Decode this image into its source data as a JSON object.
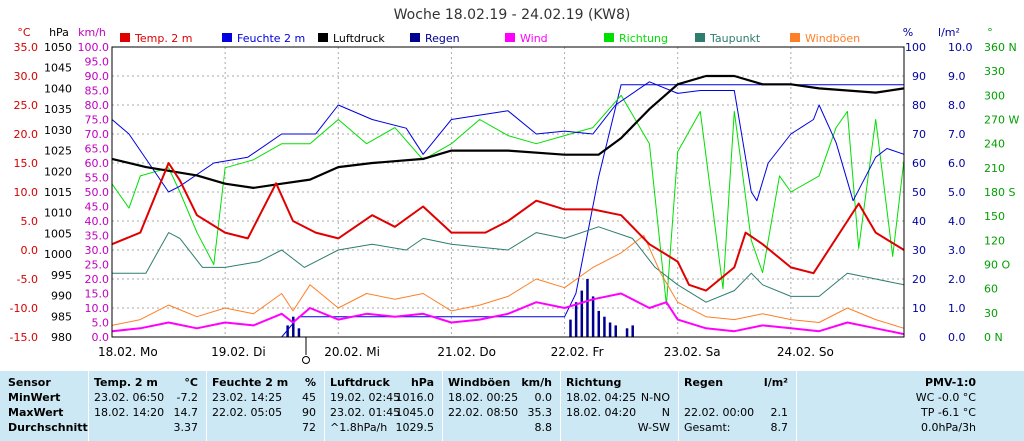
{
  "title": "Woche 18.02.19 - 24.02.19 (KW8)",
  "axes": {
    "temp": {
      "unit": "°C",
      "ticks": [
        "35.0",
        "30.0",
        "25.0",
        "20.0",
        "15.0",
        "10.0",
        "5.0",
        "0.0",
        "-5.0",
        "-10.0",
        "-15.0"
      ],
      "color": "#d40000"
    },
    "pressure": {
      "unit": "hPa",
      "ticks": [
        "1050",
        "1045",
        "1040",
        "1035",
        "1030",
        "1025",
        "1020",
        "1015",
        "1010",
        "1005",
        "1000",
        "995",
        "990",
        "985",
        "980"
      ],
      "color": "#000000"
    },
    "wind": {
      "unit": "km/h",
      "ticks": [
        "100.0",
        "95.0",
        "90.0",
        "85.0",
        "80.0",
        "75.0",
        "70.0",
        "65.0",
        "60.0",
        "55.0",
        "50.0",
        "45.0",
        "40.0",
        "35.0",
        "30.0",
        "25.0",
        "20.0",
        "15.0",
        "10.0",
        "5.0",
        "0.0"
      ],
      "color": "#c000c0"
    },
    "humidity": {
      "unit": "%",
      "ticks": [
        "100",
        "90",
        "80",
        "70",
        "60",
        "50",
        "40",
        "30",
        "20",
        "10",
        "0"
      ],
      "color": "#0000a0"
    },
    "rain": {
      "unit": "l/m²",
      "ticks": [
        "10.0",
        "9.0",
        "8.0",
        "7.0",
        "6.0",
        "5.0",
        "4.0",
        "3.0",
        "2.0",
        "1.0",
        "0.0"
      ],
      "color": "#0000a0"
    },
    "direction": {
      "unit": "°",
      "ticks": [
        "360 N",
        "330",
        "300",
        "270 W",
        "240",
        "210",
        "180 S",
        "150",
        "120",
        "90 O",
        "60",
        "30",
        "0 N"
      ],
      "color": "#00a000"
    }
  },
  "days": [
    "18.02.  Mo",
    "19.02.  Di",
    "20.02.  Mi",
    "21.02.  Do",
    "22.02.  Fr",
    "23.02.  Sa",
    "24.02.  So"
  ],
  "legend": [
    {
      "label": "Temp. 2 m",
      "color": "#e00000"
    },
    {
      "label": "Feuchte  2 m",
      "color": "#0000e0"
    },
    {
      "label": "Luftdruck",
      "color": "#000000"
    },
    {
      "label": "Regen",
      "color": "#000090"
    },
    {
      "label": "Wind",
      "color": "#ff00ff"
    },
    {
      "label": "Richtung",
      "color": "#00e000"
    },
    {
      "label": "Taupunkt",
      "color": "#2e7d6e"
    },
    {
      "label": "Windböen",
      "color": "#ff7f27"
    }
  ],
  "chart_data": {
    "type": "line",
    "title": "Woche 18.02.19 - 24.02.19 (KW8)",
    "x_range_days": [
      0,
      7
    ],
    "series": [
      {
        "name": "Temp. 2 m",
        "unit": "°C",
        "axis": "temp",
        "color": "#e00000",
        "points": [
          [
            0,
            1
          ],
          [
            0.25,
            3
          ],
          [
            0.5,
            15
          ],
          [
            0.6,
            12
          ],
          [
            0.75,
            6
          ],
          [
            1,
            3
          ],
          [
            1.2,
            2
          ],
          [
            1.45,
            11.5
          ],
          [
            1.6,
            5
          ],
          [
            1.8,
            3
          ],
          [
            2,
            2
          ],
          [
            2.3,
            6
          ],
          [
            2.5,
            4
          ],
          [
            2.75,
            7.5
          ],
          [
            3,
            3
          ],
          [
            3.3,
            3
          ],
          [
            3.5,
            5
          ],
          [
            3.75,
            8.5
          ],
          [
            4,
            7
          ],
          [
            4.25,
            7
          ],
          [
            4.5,
            6
          ],
          [
            4.75,
            1
          ],
          [
            5,
            -2
          ],
          [
            5.1,
            -6
          ],
          [
            5.25,
            -7
          ],
          [
            5.5,
            -3
          ],
          [
            5.6,
            3
          ],
          [
            5.75,
            1
          ],
          [
            6,
            -3
          ],
          [
            6.2,
            -4
          ],
          [
            6.5,
            5
          ],
          [
            6.6,
            8
          ],
          [
            6.75,
            3
          ],
          [
            7,
            0
          ]
        ]
      },
      {
        "name": "Feuchte  2 m",
        "unit": "%",
        "axis": "humidity",
        "color": "#0000e0",
        "points": [
          [
            0,
            75
          ],
          [
            0.15,
            70
          ],
          [
            0.5,
            50
          ],
          [
            0.6,
            52
          ],
          [
            0.9,
            60
          ],
          [
            1.2,
            62
          ],
          [
            1.5,
            70
          ],
          [
            1.8,
            70
          ],
          [
            2,
            80
          ],
          [
            2.3,
            75
          ],
          [
            2.6,
            72
          ],
          [
            2.75,
            63
          ],
          [
            3,
            75
          ],
          [
            3.5,
            78
          ],
          [
            3.75,
            70
          ],
          [
            4,
            71
          ],
          [
            4.25,
            70
          ],
          [
            4.45,
            80
          ],
          [
            4.75,
            88
          ],
          [
            5,
            84
          ],
          [
            5.2,
            85
          ],
          [
            5.5,
            85
          ],
          [
            5.65,
            50
          ],
          [
            5.7,
            47
          ],
          [
            5.8,
            60
          ],
          [
            6,
            70
          ],
          [
            6.2,
            75
          ],
          [
            6.25,
            80
          ],
          [
            6.4,
            67
          ],
          [
            6.55,
            47
          ],
          [
            6.75,
            62
          ],
          [
            6.85,
            65
          ],
          [
            7,
            63
          ]
        ]
      },
      {
        "name": "Luftdruck",
        "unit": "hPa",
        "axis": "pressure",
        "color": "#000000",
        "points": [
          [
            0,
            1023
          ],
          [
            0.3,
            1021
          ],
          [
            0.75,
            1019
          ],
          [
            1,
            1017
          ],
          [
            1.25,
            1016
          ],
          [
            1.5,
            1017
          ],
          [
            1.75,
            1018
          ],
          [
            2,
            1021
          ],
          [
            2.3,
            1022
          ],
          [
            2.75,
            1023
          ],
          [
            3,
            1025
          ],
          [
            3.5,
            1025
          ],
          [
            4,
            1024
          ],
          [
            4.3,
            1024
          ],
          [
            4.5,
            1028
          ],
          [
            4.75,
            1035
          ],
          [
            5,
            1041
          ],
          [
            5.25,
            1043
          ],
          [
            5.5,
            1043
          ],
          [
            5.75,
            1041
          ],
          [
            6,
            1041
          ],
          [
            6.25,
            1040
          ],
          [
            6.75,
            1039
          ],
          [
            7,
            1040
          ]
        ]
      },
      {
        "name": "Taupunkt",
        "unit": "°C",
        "axis": "temp",
        "color": "#2e7d6e",
        "points": [
          [
            0,
            -4
          ],
          [
            0.3,
            -4
          ],
          [
            0.5,
            3
          ],
          [
            0.6,
            2
          ],
          [
            0.8,
            -3
          ],
          [
            1,
            -3
          ],
          [
            1.3,
            -2
          ],
          [
            1.5,
            0
          ],
          [
            1.7,
            -3
          ],
          [
            2,
            0
          ],
          [
            2.3,
            1
          ],
          [
            2.6,
            0
          ],
          [
            2.75,
            2
          ],
          [
            3,
            1
          ],
          [
            3.5,
            0
          ],
          [
            3.75,
            3
          ],
          [
            4,
            2
          ],
          [
            4.3,
            4
          ],
          [
            4.6,
            2
          ],
          [
            4.8,
            -3
          ],
          [
            5,
            -6
          ],
          [
            5.25,
            -9
          ],
          [
            5.5,
            -7
          ],
          [
            5.65,
            -4
          ],
          [
            5.75,
            -6
          ],
          [
            6,
            -8
          ],
          [
            6.25,
            -8
          ],
          [
            6.5,
            -4
          ],
          [
            6.75,
            -5
          ],
          [
            7,
            -6
          ]
        ]
      },
      {
        "name": "Wind",
        "unit": "km/h",
        "axis": "wind",
        "color": "#ff00ff",
        "points": [
          [
            0,
            2
          ],
          [
            0.25,
            3
          ],
          [
            0.5,
            5
          ],
          [
            0.75,
            3
          ],
          [
            1,
            5
          ],
          [
            1.25,
            4
          ],
          [
            1.5,
            8
          ],
          [
            1.6,
            5
          ],
          [
            1.75,
            10
          ],
          [
            2,
            6
          ],
          [
            2.25,
            8
          ],
          [
            2.5,
            7
          ],
          [
            2.75,
            8
          ],
          [
            3,
            5
          ],
          [
            3.25,
            6
          ],
          [
            3.5,
            8
          ],
          [
            3.75,
            12
          ],
          [
            4,
            10
          ],
          [
            4.25,
            13
          ],
          [
            4.5,
            15
          ],
          [
            4.75,
            10
          ],
          [
            4.9,
            12
          ],
          [
            5,
            6
          ],
          [
            5.25,
            3
          ],
          [
            5.5,
            2
          ],
          [
            5.75,
            4
          ],
          [
            6,
            3
          ],
          [
            6.25,
            2
          ],
          [
            6.5,
            5
          ],
          [
            6.75,
            3
          ],
          [
            7,
            1
          ]
        ]
      },
      {
        "name": "Windböen",
        "unit": "km/h",
        "axis": "wind",
        "color": "#ff7f27",
        "points": [
          [
            0,
            4
          ],
          [
            0.25,
            6
          ],
          [
            0.5,
            11
          ],
          [
            0.75,
            7
          ],
          [
            1,
            10
          ],
          [
            1.25,
            8
          ],
          [
            1.5,
            15
          ],
          [
            1.6,
            9
          ],
          [
            1.75,
            18
          ],
          [
            2,
            10
          ],
          [
            2.25,
            15
          ],
          [
            2.5,
            13
          ],
          [
            2.75,
            15
          ],
          [
            3,
            9
          ],
          [
            3.25,
            11
          ],
          [
            3.5,
            14
          ],
          [
            3.75,
            20
          ],
          [
            4,
            17
          ],
          [
            4.25,
            24
          ],
          [
            4.5,
            29
          ],
          [
            4.7,
            35
          ],
          [
            4.85,
            22
          ],
          [
            5,
            12
          ],
          [
            5.25,
            7
          ],
          [
            5.5,
            6
          ],
          [
            5.75,
            8
          ],
          [
            6,
            6
          ],
          [
            6.25,
            5
          ],
          [
            6.5,
            10
          ],
          [
            6.75,
            6
          ],
          [
            7,
            3
          ]
        ]
      },
      {
        "name": "Richtung",
        "unit": "°",
        "axis": "direction",
        "color": "#00e000",
        "points": [
          [
            0,
            190
          ],
          [
            0.15,
            160
          ],
          [
            0.25,
            200
          ],
          [
            0.5,
            210
          ],
          [
            0.6,
            180
          ],
          [
            0.75,
            130
          ],
          [
            0.9,
            90
          ],
          [
            1,
            210
          ],
          [
            1.25,
            220
          ],
          [
            1.5,
            240
          ],
          [
            1.75,
            240
          ],
          [
            2,
            270
          ],
          [
            2.25,
            240
          ],
          [
            2.5,
            260
          ],
          [
            2.75,
            220
          ],
          [
            3,
            240
          ],
          [
            3.25,
            270
          ],
          [
            3.5,
            250
          ],
          [
            3.75,
            240
          ],
          [
            4,
            250
          ],
          [
            4.25,
            260
          ],
          [
            4.5,
            300
          ],
          [
            4.75,
            240
          ],
          [
            4.9,
            40
          ],
          [
            5,
            230
          ],
          [
            5.2,
            280
          ],
          [
            5.4,
            60
          ],
          [
            5.5,
            280
          ],
          [
            5.65,
            120
          ],
          [
            5.75,
            80
          ],
          [
            5.9,
            200
          ],
          [
            6,
            180
          ],
          [
            6.25,
            200
          ],
          [
            6.4,
            260
          ],
          [
            6.5,
            280
          ],
          [
            6.6,
            110
          ],
          [
            6.75,
            270
          ],
          [
            6.9,
            100
          ],
          [
            7,
            220
          ]
        ]
      }
    ],
    "bars": {
      "name": "Regen",
      "unit": "l/m²",
      "axis": "rain",
      "color": "#000090",
      "points": [
        [
          1.55,
          0.4
        ],
        [
          1.6,
          0.7
        ],
        [
          1.65,
          0.3
        ],
        [
          4.05,
          0.6
        ],
        [
          4.1,
          1.2
        ],
        [
          4.15,
          1.6
        ],
        [
          4.2,
          2.0
        ],
        [
          4.25,
          1.4
        ],
        [
          4.3,
          0.9
        ],
        [
          4.35,
          0.7
        ],
        [
          4.4,
          0.5
        ],
        [
          4.45,
          0.4
        ],
        [
          4.55,
          0.3
        ],
        [
          4.6,
          0.4
        ]
      ]
    },
    "rain_cumulative": {
      "axis": "rain",
      "color": "#0000e0",
      "points": [
        [
          1.5,
          0
        ],
        [
          1.65,
          0.7
        ],
        [
          4.0,
          0.7
        ],
        [
          4.1,
          1.5
        ],
        [
          4.3,
          5.5
        ],
        [
          4.5,
          8.7
        ],
        [
          7,
          8.7
        ]
      ]
    },
    "grid": true
  },
  "stats": {
    "sensor_header": "Sensor",
    "row_labels": [
      "MinWert",
      "MaxWert",
      "Durchschnitt"
    ],
    "columns": [
      {
        "title": "Temp. 2 m",
        "unit": "°C",
        "rows": [
          [
            "23.02.  06:50",
            "-7.2"
          ],
          [
            "18.02.  14:20",
            "14.7"
          ],
          [
            "",
            "3.37"
          ]
        ]
      },
      {
        "title": "Feuchte  2 m",
        "unit": "%",
        "rows": [
          [
            "23.02.  14:25",
            "45"
          ],
          [
            "22.02.  05:05",
            "90"
          ],
          [
            "",
            "72"
          ]
        ]
      },
      {
        "title": "Luftdruck",
        "unit": "hPa",
        "rows": [
          [
            "19.02.  02:45",
            "1016.0"
          ],
          [
            "23.02.  01:45",
            "1045.0"
          ],
          [
            "^1.8hPa/h",
            "1029.5"
          ]
        ]
      },
      {
        "title": "Windböen",
        "unit": "km/h",
        "rows": [
          [
            "18.02.  00:25",
            "0.0"
          ],
          [
            "22.02.  08:50",
            "35.3"
          ],
          [
            "",
            "8.8"
          ]
        ]
      },
      {
        "title": "Richtung",
        "unit": "",
        "rows": [
          [
            "18.02.  04:25",
            "N-NO"
          ],
          [
            "18.02.  04:20",
            "N"
          ],
          [
            "",
            "W-SW"
          ]
        ]
      },
      {
        "title": "Regen",
        "unit": "l/m²",
        "rows": [
          [
            "",
            ""
          ],
          [
            "22.02.  00:00",
            "2.1"
          ],
          [
            "Gesamt:",
            "8.7"
          ]
        ]
      }
    ],
    "pmv": {
      "title": "PMV-1:0",
      "lines": [
        "WC -0.0 °C",
        "TP -6.1 °C",
        "0.0hPa/3h"
      ]
    }
  }
}
